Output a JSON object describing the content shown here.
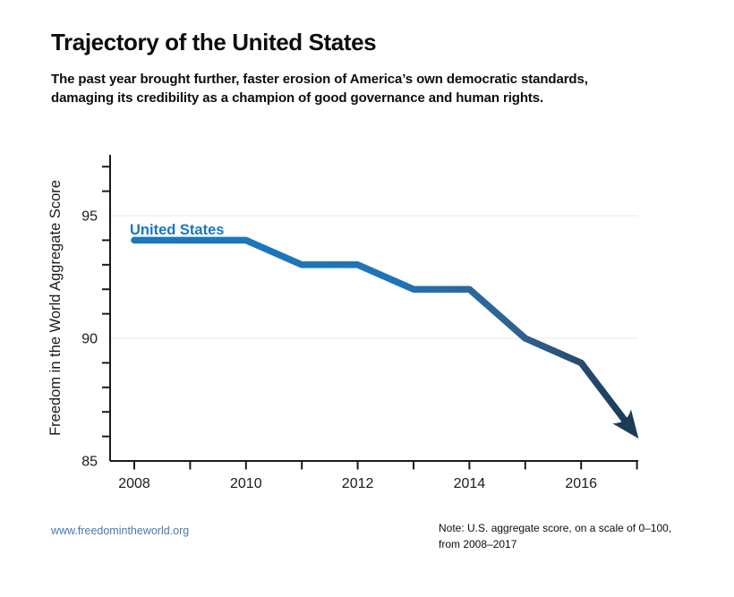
{
  "header": {
    "title": "Trajectory of the United States",
    "subtitle_line1": "The past year brought further, faster erosion of America’s own democratic standards,",
    "subtitle_line2": "damaging its credibility as a champion of good governance and human rights."
  },
  "chart_data": {
    "type": "line",
    "series_label": "United States",
    "ylabel": "Freedom in the World Aggregate Score",
    "x": [
      2008,
      2009,
      2010,
      2011,
      2012,
      2013,
      2014,
      2015,
      2016,
      2017
    ],
    "values": [
      94,
      94,
      94,
      93,
      93,
      92,
      92,
      90,
      89,
      86
    ],
    "ylim": [
      85,
      97.5
    ],
    "ytick_labels": [
      "85",
      "90",
      "95"
    ],
    "minor_yticks": [
      86,
      87,
      88,
      89,
      91,
      92,
      93,
      94,
      96,
      97
    ],
    "gridline_scores": [
      90,
      95
    ],
    "xtick_labels": [
      "2008",
      "2010",
      "2012",
      "2014",
      "2016"
    ],
    "grid": "horizontal-only",
    "legend_position": "inline-label-top-left",
    "arrow_end": true,
    "line_gradient_stops": [
      {
        "offset": 0,
        "color": "#1B77BE"
      },
      {
        "offset": 0.52,
        "color": "#1E74B8"
      },
      {
        "offset": 0.78,
        "color": "#31618F"
      },
      {
        "offset": 1,
        "color": "#1C3A57"
      }
    ]
  },
  "footer": {
    "website": "www.freedomintheworld.org",
    "note_line1": "Note: U.S. aggregate score, on a scale of 0–100,",
    "note_line2": "from 2008–2017"
  },
  "colors": {
    "series_blue": "#1B76BD",
    "series_dark": "#1D3A57",
    "grid": "#ECECEC",
    "axis": "#1A1A1A",
    "text": "#0D0D0D",
    "link_blue": "#4A78AE"
  }
}
